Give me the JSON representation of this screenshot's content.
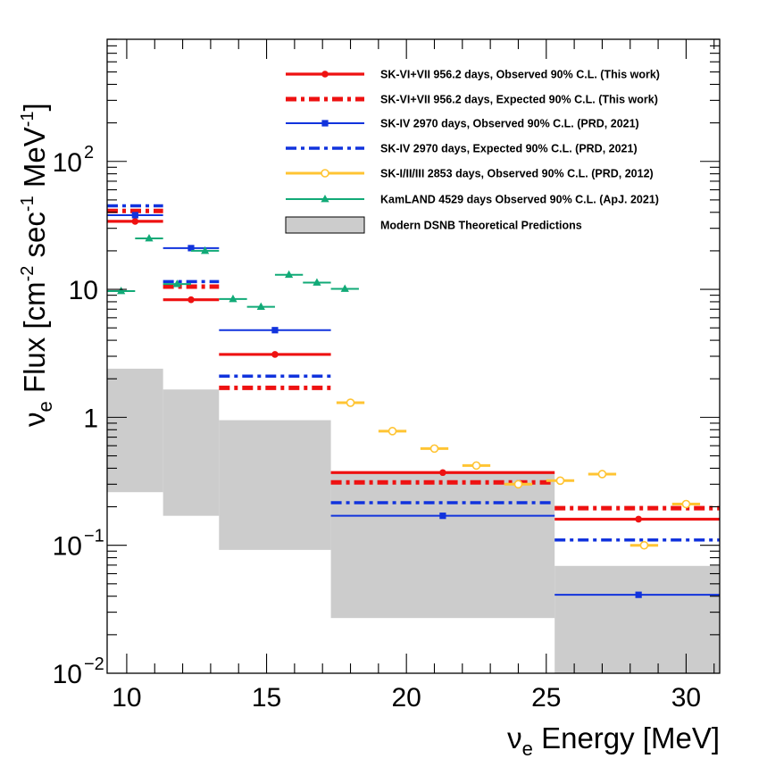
{
  "chart_data": {
    "type": "line",
    "title": "",
    "xlabel": {
      "main": "ν",
      "sub": "e",
      "rest": " Energy [MeV]"
    },
    "ylabel": {
      "main": "ν",
      "sub": "e",
      "rest1": " Flux [cm",
      "sup1": "-2",
      "rest2": " sec",
      "sup2": "-1",
      "rest3": " MeV",
      "sup3": "-1",
      "rest4": "]"
    },
    "xlim": [
      9.3,
      31.2
    ],
    "ylim": [
      0.01,
      900
    ],
    "yscale": "log",
    "x_ticks": [
      {
        "value": 10,
        "label": "10"
      },
      {
        "value": 15,
        "label": "15"
      },
      {
        "value": 20,
        "label": "20"
      },
      {
        "value": 25,
        "label": "25"
      },
      {
        "value": 30,
        "label": "30"
      }
    ],
    "y_ticks": [
      {
        "value": 0.01,
        "base": "10",
        "exp": "−2"
      },
      {
        "value": 0.1,
        "base": "10",
        "exp": "−1"
      },
      {
        "value": 1,
        "base": "1",
        "exp": ""
      },
      {
        "value": 10,
        "base": "10",
        "exp": ""
      },
      {
        "value": 100,
        "base": "10",
        "exp": "2"
      }
    ],
    "legend_position": "top-right",
    "legend": [
      {
        "key": "sk67_obs",
        "label": "SK-VI+VII 956.2 days, Observed 90% C.L. (This work)"
      },
      {
        "key": "sk67_exp",
        "label": "SK-VI+VII 956.2 days, Expected 90% C.L. (This work)"
      },
      {
        "key": "sk4_obs",
        "label": "SK-IV 2970 days, Observed 90% C.L. (PRD, 2021)"
      },
      {
        "key": "sk4_exp",
        "label": "SK-IV 2970 days, Expected 90% C.L. (PRD, 2021)"
      },
      {
        "key": "sk123_obs",
        "label": "SK-I/II/III 2853 days, Observed 90% C.L. (PRD, 2012)"
      },
      {
        "key": "kamland_obs",
        "label": "KamLAND 4529 days Observed 90% C.L. (ApJ. 2021)"
      },
      {
        "key": "dsnb",
        "label": "Modern DSNB Theoretical Predictions"
      }
    ],
    "series": [
      {
        "key": "sk67_obs",
        "color": "#ee1111",
        "style": "solid",
        "marker": "filled-circle",
        "bins": [
          {
            "x0": 9.3,
            "x1": 11.3,
            "x": 10.3,
            "y": 34
          },
          {
            "x0": 11.3,
            "x1": 13.3,
            "x": 12.3,
            "y": 8.3
          },
          {
            "x0": 13.3,
            "x1": 17.3,
            "x": 15.3,
            "y": 3.1
          },
          {
            "x0": 17.3,
            "x1": 25.3,
            "x": 21.3,
            "y": 0.37
          },
          {
            "x0": 25.3,
            "x1": 31.3,
            "x": 28.3,
            "y": 0.16
          }
        ]
      },
      {
        "key": "sk67_exp",
        "color": "#ee1111",
        "style": "dashdot",
        "marker": "none",
        "bins": [
          {
            "x0": 9.3,
            "x1": 11.3,
            "y": 41
          },
          {
            "x0": 11.3,
            "x1": 13.3,
            "y": 10.5
          },
          {
            "x0": 13.3,
            "x1": 17.3,
            "y": 1.7
          },
          {
            "x0": 17.3,
            "x1": 25.3,
            "y": 0.31
          },
          {
            "x0": 25.3,
            "x1": 31.3,
            "y": 0.195
          }
        ]
      },
      {
        "key": "sk4_obs",
        "color": "#1133dd",
        "style": "solid",
        "marker": "filled-square",
        "bins": [
          {
            "x0": 9.3,
            "x1": 11.3,
            "x": 10.3,
            "y": 38
          },
          {
            "x0": 11.3,
            "x1": 13.3,
            "x": 12.3,
            "y": 21
          },
          {
            "x0": 13.3,
            "x1": 17.3,
            "x": 15.3,
            "y": 4.8
          },
          {
            "x0": 17.3,
            "x1": 25.3,
            "x": 21.3,
            "y": 0.17
          },
          {
            "x0": 25.3,
            "x1": 31.3,
            "x": 28.3,
            "y": 0.041
          }
        ]
      },
      {
        "key": "sk4_exp",
        "color": "#1133dd",
        "style": "dashdot",
        "marker": "none",
        "bins": [
          {
            "x0": 9.3,
            "x1": 11.3,
            "y": 45
          },
          {
            "x0": 11.3,
            "x1": 13.3,
            "y": 11.5
          },
          {
            "x0": 13.3,
            "x1": 17.3,
            "y": 2.1
          },
          {
            "x0": 17.3,
            "x1": 25.3,
            "y": 0.215
          },
          {
            "x0": 25.3,
            "x1": 31.3,
            "y": 0.11
          }
        ]
      },
      {
        "key": "sk123_obs",
        "color": "#ffc433",
        "style": "solid",
        "marker": "open-circle",
        "bins": [
          {
            "x0": 17.5,
            "x1": 18.5,
            "x": 18.0,
            "y": 1.3
          },
          {
            "x0": 19.0,
            "x1": 20.0,
            "x": 19.5,
            "y": 0.78
          },
          {
            "x0": 20.5,
            "x1": 21.5,
            "x": 21.0,
            "y": 0.57
          },
          {
            "x0": 22.0,
            "x1": 23.0,
            "x": 22.5,
            "y": 0.42
          },
          {
            "x0": 23.5,
            "x1": 24.5,
            "x": 24.0,
            "y": 0.3
          },
          {
            "x0": 25.0,
            "x1": 26.0,
            "x": 25.5,
            "y": 0.32
          },
          {
            "x0": 26.5,
            "x1": 27.5,
            "x": 27.0,
            "y": 0.36
          },
          {
            "x0": 28.0,
            "x1": 29.0,
            "x": 28.5,
            "y": 0.1
          },
          {
            "x0": 29.5,
            "x1": 30.5,
            "x": 30.0,
            "y": 0.21
          }
        ]
      },
      {
        "key": "kamland_obs",
        "color": "#11aa77",
        "style": "solid",
        "marker": "filled-triangle",
        "bins": [
          {
            "x0": 9.3,
            "x1": 10.3,
            "x": 9.8,
            "y": 9.7
          },
          {
            "x0": 10.3,
            "x1": 11.3,
            "x": 10.8,
            "y": 25
          },
          {
            "x0": 11.3,
            "x1": 12.3,
            "x": 11.8,
            "y": 11
          },
          {
            "x0": 12.3,
            "x1": 13.3,
            "x": 12.8,
            "y": 20
          },
          {
            "x0": 13.3,
            "x1": 14.3,
            "x": 13.8,
            "y": 8.4
          },
          {
            "x0": 14.3,
            "x1": 15.3,
            "x": 14.8,
            "y": 7.3
          },
          {
            "x0": 15.3,
            "x1": 16.3,
            "x": 15.8,
            "y": 13
          },
          {
            "x0": 16.3,
            "x1": 17.3,
            "x": 16.8,
            "y": 11.3
          },
          {
            "x0": 17.3,
            "x1": 18.3,
            "x": 17.8,
            "y": 10.1
          }
        ]
      }
    ],
    "bands": [
      {
        "key": "dsnb",
        "color": "#cccccc",
        "bins": [
          {
            "x0": 9.3,
            "x1": 11.3,
            "low": 0.26,
            "high": 2.4
          },
          {
            "x0": 11.3,
            "x1": 13.3,
            "low": 0.17,
            "high": 1.65
          },
          {
            "x0": 13.3,
            "x1": 17.3,
            "low": 0.092,
            "high": 0.95
          },
          {
            "x0": 17.3,
            "x1": 25.3,
            "low": 0.027,
            "high": 0.37
          },
          {
            "x0": 25.3,
            "x1": 31.3,
            "low": 0.01,
            "high": 0.069
          }
        ]
      }
    ]
  }
}
